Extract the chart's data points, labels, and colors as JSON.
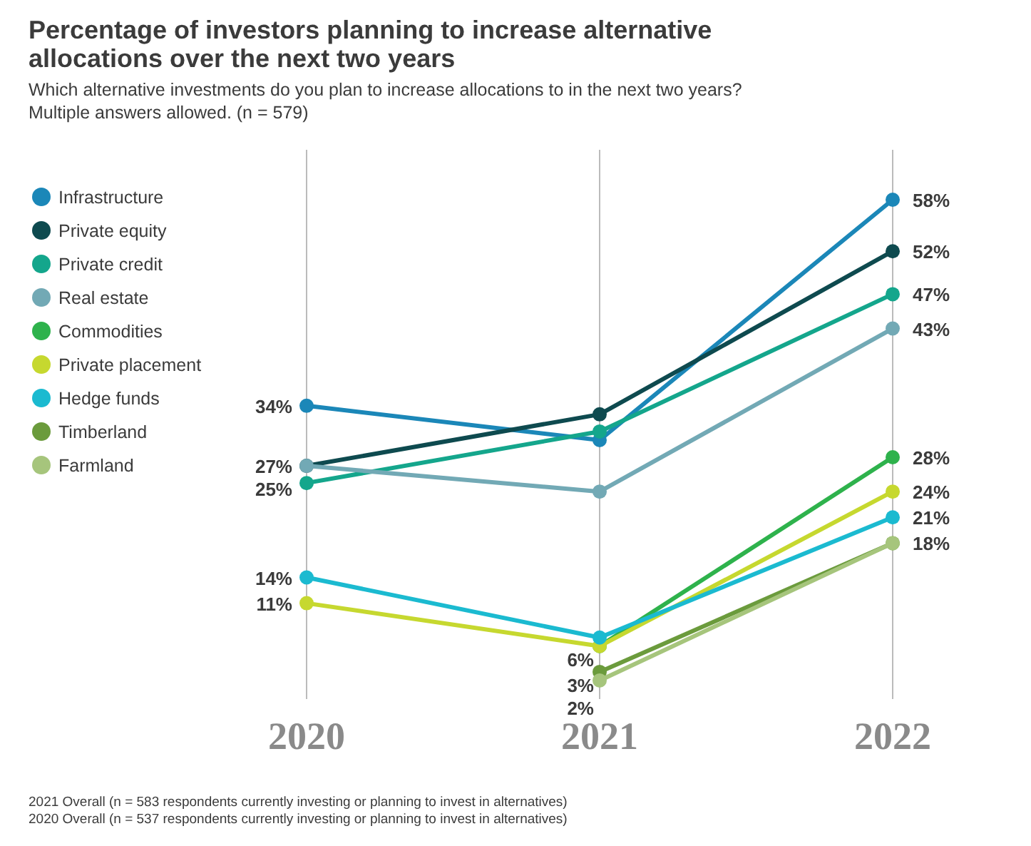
{
  "chart_data": {
    "type": "line",
    "title": "Percentage of investors planning to increase alternative allocations over the next two years",
    "subtitle": "Which alternative investments do you plan to increase allocations to in the next two years? Multiple answers allowed. (n = 579)",
    "categories": [
      "2020",
      "2021",
      "2022"
    ],
    "series": [
      {
        "name": "Infrastructure",
        "color": "#1b87b8",
        "values": [
          34,
          30,
          58
        ],
        "value_labels": [
          "34%",
          null,
          "58%"
        ]
      },
      {
        "name": "Private equity",
        "color": "#0e4a4f",
        "values": [
          27,
          33,
          52
        ],
        "value_labels": [
          "27%",
          null,
          "52%"
        ]
      },
      {
        "name": "Private credit",
        "color": "#14a68c",
        "values": [
          25,
          31,
          47
        ],
        "value_labels": [
          "25%",
          null,
          "47%"
        ]
      },
      {
        "name": "Real estate",
        "color": "#72a9b5",
        "values": [
          27,
          24,
          43
        ],
        "value_labels": [
          null,
          null,
          "43%"
        ]
      },
      {
        "name": "Commodities",
        "color": "#2eb24c",
        "values": [
          null,
          6,
          28
        ],
        "value_labels": [
          null,
          "6%",
          "28%"
        ]
      },
      {
        "name": "Private placement",
        "color": "#c6d82f",
        "values": [
          11,
          6,
          24
        ],
        "value_labels": [
          "11%",
          null,
          "24%"
        ]
      },
      {
        "name": "Hedge funds",
        "color": "#1bbad0",
        "values": [
          14,
          7,
          21
        ],
        "value_labels": [
          "14%",
          null,
          "21%"
        ]
      },
      {
        "name": "Timberland",
        "color": "#6b9b3c",
        "values": [
          null,
          3,
          18
        ],
        "value_labels": [
          null,
          "3%",
          "18%"
        ]
      },
      {
        "name": "Farmland",
        "color": "#a6c57c",
        "values": [
          null,
          2,
          18
        ],
        "value_labels": [
          null,
          "2%",
          null
        ]
      }
    ],
    "marker": "circle",
    "grid": "x",
    "legend": "left",
    "annotations": [
      "2021 Overall (n = 583 respondents currently investing or planning to invest in alternatives)",
      "2020 Overall (n = 537 respondents currently investing or planning to invest in alternatives)"
    ]
  }
}
